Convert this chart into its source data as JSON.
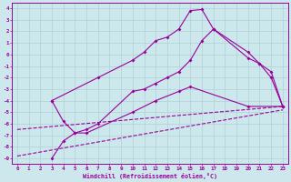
{
  "background_color": "#cce8ec",
  "line_color": "#990099",
  "grid_color": "#b0d0d4",
  "xlim": [
    -0.5,
    23.5
  ],
  "ylim": [
    -9.5,
    4.5
  ],
  "xticks": [
    0,
    1,
    2,
    3,
    4,
    5,
    6,
    7,
    8,
    9,
    10,
    11,
    12,
    13,
    14,
    15,
    16,
    17,
    18,
    19,
    20,
    21,
    22,
    23
  ],
  "yticks": [
    4,
    3,
    2,
    1,
    0,
    -1,
    -2,
    -3,
    -4,
    -5,
    -6,
    -7,
    -8,
    -9
  ],
  "xlabel": "Windchill (Refroidissement éolien,°C)",
  "dashed_line1": {
    "x": [
      0,
      23
    ],
    "y": [
      -8.8,
      -4.8
    ]
  },
  "dashed_line2": {
    "x": [
      0,
      23
    ],
    "y": [
      -6.5,
      -4.5
    ]
  },
  "line_upper": {
    "x": [
      3,
      7,
      10,
      11,
      12,
      13,
      14,
      15,
      16,
      17,
      20,
      21,
      22,
      23
    ],
    "y": [
      -4,
      -2,
      -0.5,
      0.2,
      1.2,
      1.5,
      2.2,
      3.8,
      3.9,
      2.2,
      0.2,
      -0.8,
      -2.0,
      -4.5
    ]
  },
  "line_middle": {
    "x": [
      3,
      4,
      5,
      6,
      7,
      10,
      11,
      12,
      13,
      14,
      15,
      16,
      17,
      20,
      21,
      22,
      23
    ],
    "y": [
      -4,
      -5.8,
      -6.8,
      -6.5,
      -6.0,
      -3.2,
      -3.0,
      -2.5,
      -2.0,
      -1.5,
      -0.5,
      1.2,
      2.2,
      -0.3,
      -0.8,
      -1.5,
      -4.5
    ]
  },
  "line_lower": {
    "x": [
      3,
      4,
      5,
      6,
      10,
      12,
      14,
      15,
      20,
      23
    ],
    "y": [
      -9.0,
      -7.5,
      -6.8,
      -6.8,
      -5.0,
      -4.0,
      -3.2,
      -2.8,
      -4.5,
      -4.5
    ]
  }
}
